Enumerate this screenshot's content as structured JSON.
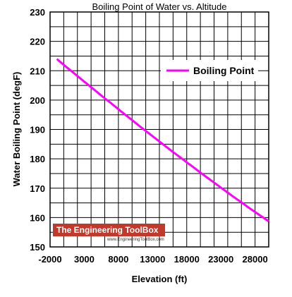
{
  "chart_data": {
    "type": "line",
    "title": "Boiling Point of Water vs. Altitude",
    "xlabel": "Elevation (ft)",
    "ylabel": "Water Boiling Point (degF)",
    "xlim": [
      -2000,
      30000
    ],
    "ylim": [
      150,
      230
    ],
    "x_ticks": [
      -2000,
      3000,
      8000,
      13000,
      18000,
      23000,
      28000
    ],
    "y_ticks": [
      150,
      160,
      170,
      180,
      190,
      200,
      210,
      220,
      230
    ],
    "grid": true,
    "legend_position": "upper-right",
    "series": [
      {
        "name": "Boiling Point",
        "color": "#ff00ff",
        "x": [
          -1000,
          0,
          1000,
          2000,
          3000,
          4000,
          5000,
          6000,
          7000,
          8000,
          9000,
          10000,
          11000,
          12000,
          13000,
          14000,
          15000,
          16000,
          17000,
          18000,
          19000,
          20000,
          21000,
          22000,
          23000,
          24000,
          25000,
          26000,
          27000,
          28000,
          29000,
          30000
        ],
        "y": [
          214.0,
          212.0,
          210.1,
          208.2,
          206.3,
          204.4,
          202.5,
          200.6,
          198.8,
          196.9,
          195.0,
          193.2,
          191.3,
          189.5,
          187.7,
          185.9,
          184.1,
          182.3,
          180.6,
          178.8,
          177.1,
          175.3,
          173.6,
          171.9,
          170.2,
          168.5,
          166.8,
          165.2,
          163.5,
          161.9,
          160.3,
          158.7
        ]
      }
    ]
  },
  "watermark": {
    "title": "The Engineering ToolBox",
    "url": "www.EngineeringToolBox.com",
    "color": "#c0392b"
  }
}
